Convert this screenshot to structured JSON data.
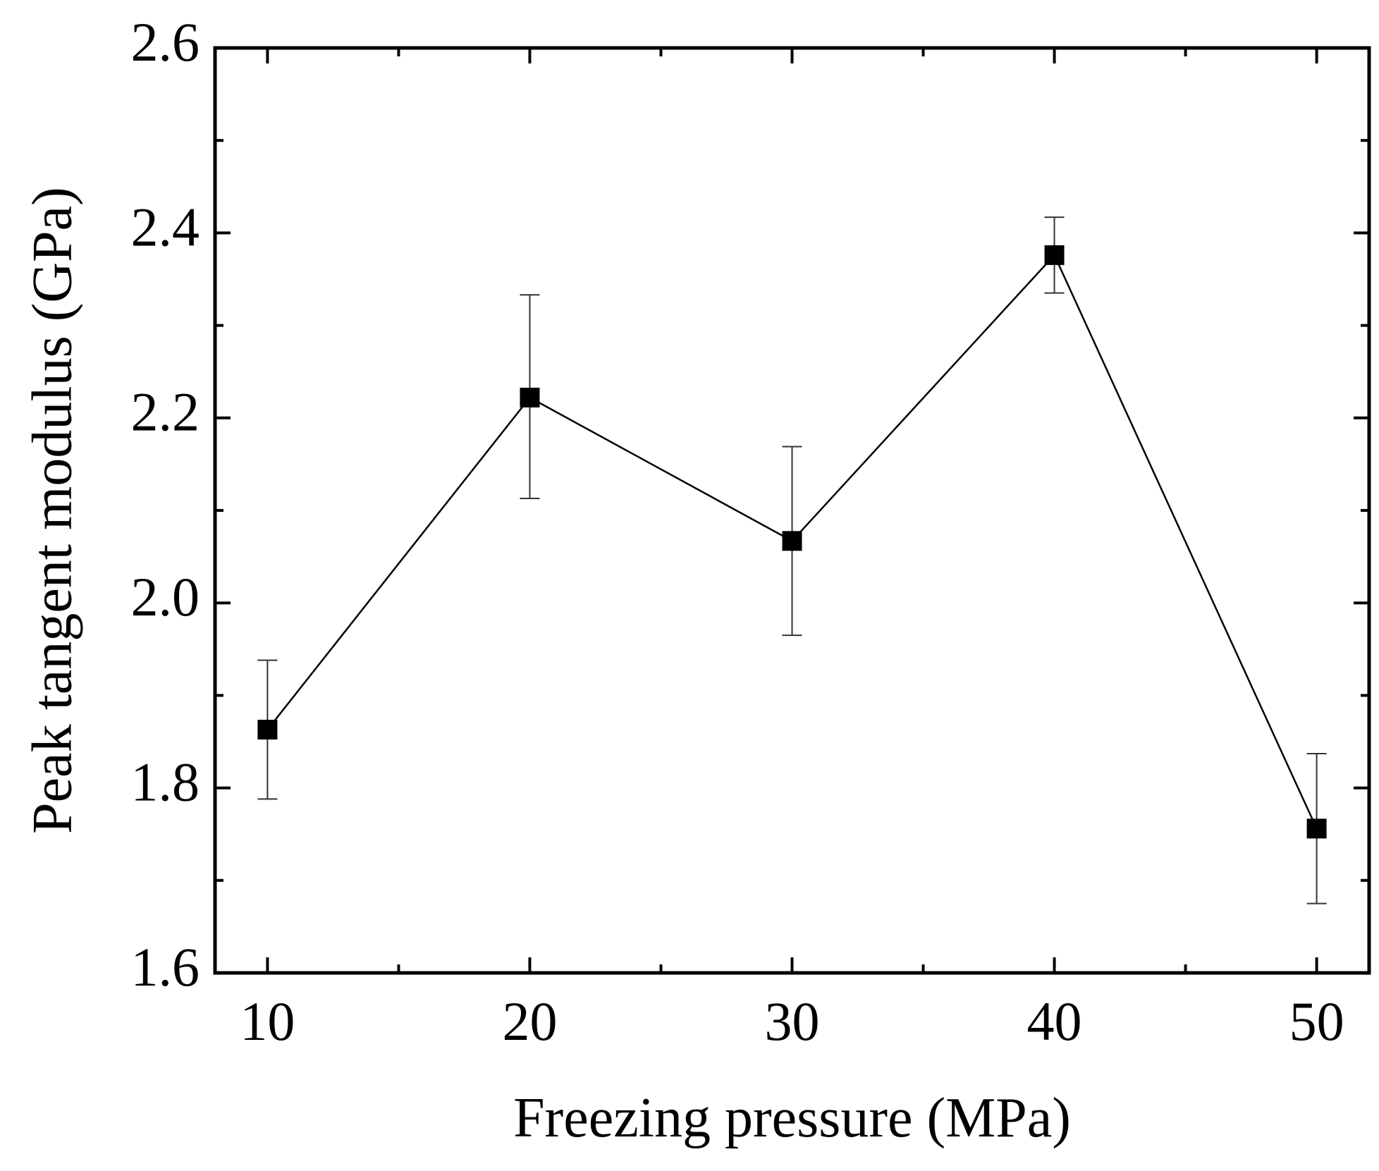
{
  "chart_data": {
    "type": "line",
    "title": "",
    "xlabel": "Freezing pressure (MPa)",
    "ylabel": "Peak tangent modulus (GPa)",
    "xlim": [
      8,
      52
    ],
    "ylim": [
      1.6,
      2.6
    ],
    "x_ticks": [
      10,
      20,
      30,
      40,
      50
    ],
    "x_tick_labels": [
      "10",
      "20",
      "30",
      "40",
      "50"
    ],
    "x_minor_ticks": [
      15,
      25,
      35,
      45
    ],
    "y_ticks": [
      1.6,
      1.8,
      2.0,
      2.2,
      2.4,
      2.6
    ],
    "y_tick_labels": [
      "1.6",
      "1.8",
      "2.0",
      "2.2",
      "2.4",
      "2.6"
    ],
    "y_minor_ticks": [
      1.7,
      1.9,
      2.1,
      2.3,
      2.5
    ],
    "grid": false,
    "legend": "none",
    "series": [
      {
        "name": "Peak tangent modulus",
        "marker": "square",
        "color": "#000000",
        "x": [
          10,
          20,
          30,
          40,
          50
        ],
        "y": [
          1.863,
          2.222,
          2.067,
          2.376,
          1.756
        ],
        "error_lower": [
          1.788,
          2.113,
          1.965,
          2.335,
          1.675
        ],
        "error_upper": [
          1.938,
          2.333,
          2.169,
          2.417,
          1.837
        ]
      }
    ]
  }
}
